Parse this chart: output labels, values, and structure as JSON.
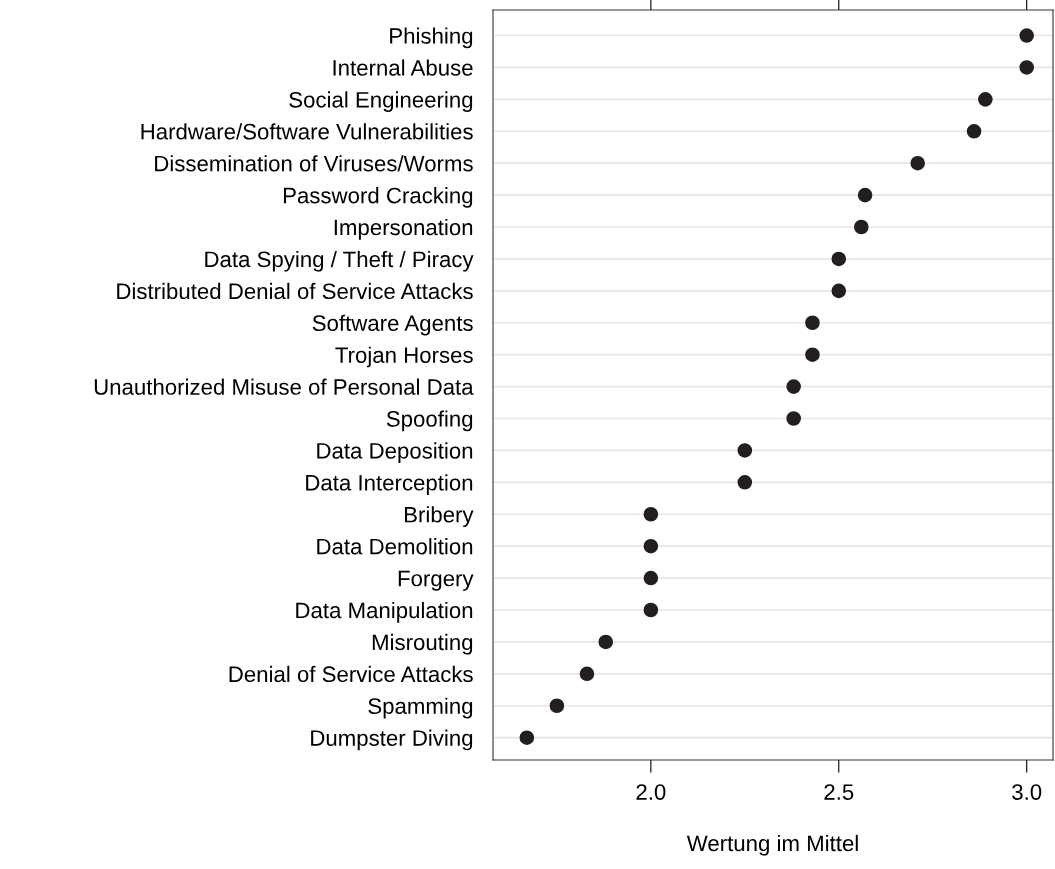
{
  "chart_data": {
    "type": "scatter",
    "orientation": "horizontal",
    "xlabel": "Wertung im Mittel",
    "categories": [
      "Phishing",
      "Internal Abuse",
      "Social Engineering",
      "Hardware/Software Vulnerabilities",
      "Dissemination of Viruses/Worms",
      "Password Cracking",
      "Impersonation",
      "Data Spying / Theft / Piracy",
      "Distributed Denial of Service Attacks",
      "Software Agents",
      "Trojan Horses",
      "Unauthorized Misuse of Personal Data",
      "Spoofing",
      "Data Deposition",
      "Data Interception",
      "Bribery",
      "Data Demolition",
      "Forgery",
      "Data Manipulation",
      "Misrouting",
      "Denial of Service Attacks",
      "Spamming",
      "Dumpster Diving"
    ],
    "values": [
      3.0,
      3.0,
      2.89,
      2.86,
      2.71,
      2.57,
      2.56,
      2.5,
      2.5,
      2.43,
      2.43,
      2.38,
      2.38,
      2.25,
      2.25,
      2.0,
      2.0,
      2.0,
      2.0,
      1.88,
      1.83,
      1.75,
      1.67
    ],
    "color": "#231f20",
    "marker": "circle",
    "grid": "y",
    "xlim": [
      1.58,
      3.07
    ],
    "xticks": [
      {
        "value": 2.0,
        "label": "2.0"
      },
      {
        "value": 2.5,
        "label": "2.5"
      },
      {
        "value": 3.0,
        "label": "3.0"
      }
    ]
  }
}
